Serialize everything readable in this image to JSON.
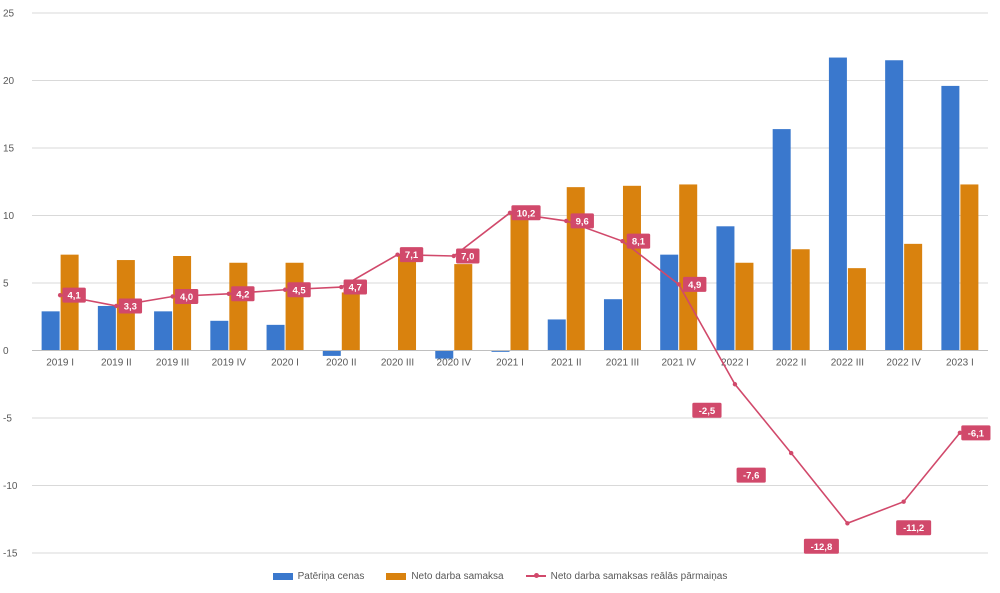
{
  "colors": {
    "series1": "#3a78cd",
    "series2": "#d9820e",
    "series3": "#d1496b"
  },
  "legend": {
    "series1": "Patēriņa cenas",
    "series2": "Neto darba samaksa",
    "series3": "Neto darba samaksas reālās pārmaiņas"
  },
  "chart_data": {
    "type": "bar",
    "title": "",
    "xlabel": "",
    "ylabel": "",
    "ylim": [
      -15,
      25
    ],
    "yticks": [
      -15,
      -10,
      -5,
      0,
      5,
      10,
      15,
      20,
      25
    ],
    "ytick_labels": [
      "-15",
      "-10",
      "-5",
      "0",
      "5",
      "10",
      "15",
      "20",
      "25"
    ],
    "grid": true,
    "legend_position": "bottom",
    "categories": [
      "2019 I",
      "2019 II",
      "2019 III",
      "2019 IV",
      "2020 I",
      "2020 II",
      "2020 III",
      "2020 IV",
      "2021 I",
      "2021 II",
      "2021 III",
      "2021 IV",
      "2022 I",
      "2022 II",
      "2022 III",
      "2022 IV",
      "2023 I"
    ],
    "series": [
      {
        "name": "Patēriņa cenas",
        "type": "bar",
        "values": [
          2.9,
          3.3,
          2.9,
          2.2,
          1.9,
          -0.4,
          0.0,
          -0.6,
          -0.1,
          2.3,
          3.8,
          7.1,
          9.2,
          16.4,
          21.7,
          21.5,
          19.6
        ]
      },
      {
        "name": "Neto darba samaksa",
        "type": "bar",
        "values": [
          7.1,
          6.7,
          7.0,
          6.5,
          6.5,
          4.3,
          7.1,
          6.4,
          10.3,
          12.1,
          12.2,
          12.3,
          6.5,
          7.5,
          6.1,
          7.9,
          12.3
        ]
      },
      {
        "name": "Neto darba samaksas reālās pārmaiņas",
        "type": "line",
        "values": [
          4.1,
          3.3,
          4.0,
          4.2,
          4.5,
          4.7,
          7.1,
          7.0,
          10.2,
          9.6,
          8.1,
          4.9,
          -2.5,
          -7.6,
          -12.8,
          -11.2,
          -6.1
        ]
      }
    ],
    "data_labels": [
      "4,1",
      "3,3",
      "4,0",
      "4,2",
      "4,5",
      "4,7",
      "7,1",
      "7,0",
      "10,2",
      "9,6",
      "8,1",
      "4,9",
      "-2,5",
      "-7,6",
      "-12,8",
      "-11,2",
      "-6,1"
    ]
  }
}
